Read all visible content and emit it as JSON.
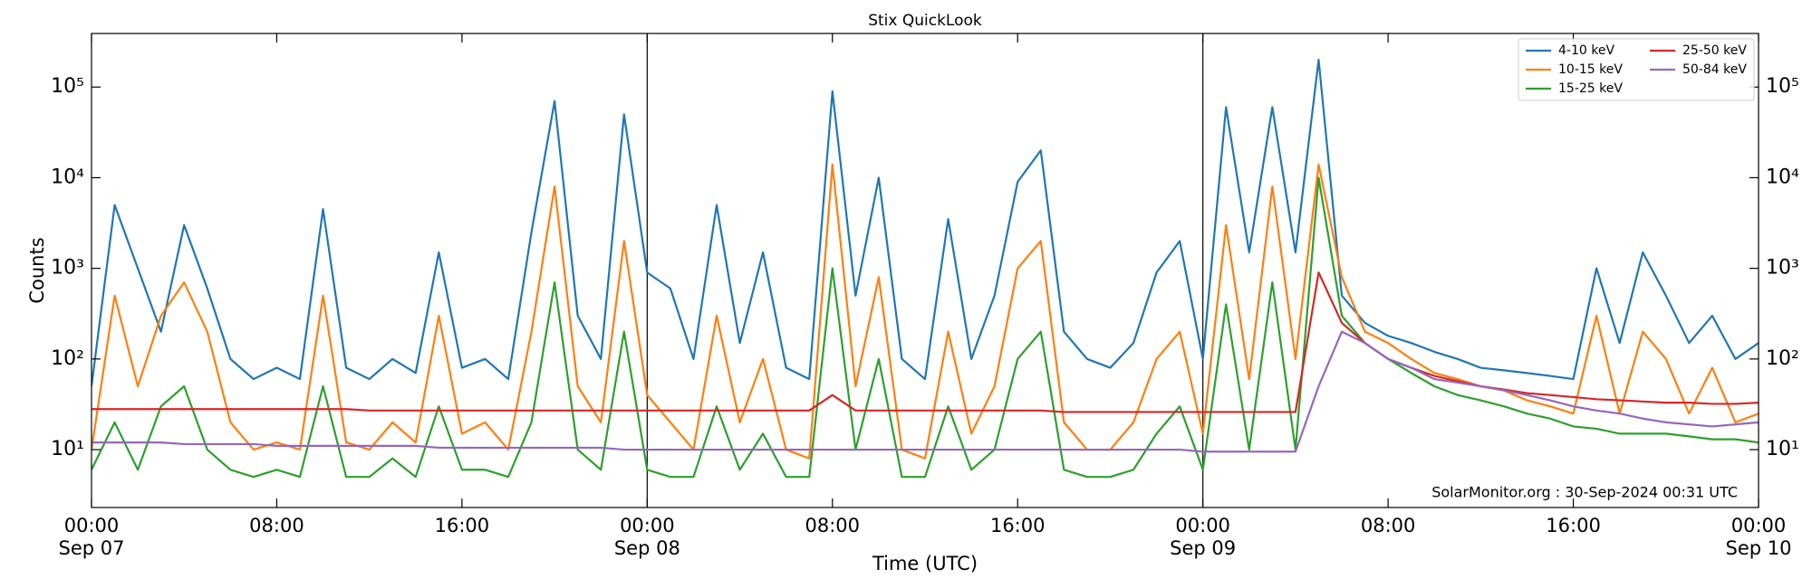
{
  "chart_data": {
    "type": "line",
    "title": "Stix QuickLook",
    "xlabel": "Time (UTC)",
    "ylabel": "Counts",
    "annotation": "SolarMonitor.org : 30-Sep-2024 00:31 UTC",
    "log_y": true,
    "legend": "upper right",
    "xlim": [
      0,
      72
    ],
    "xticks": [
      {
        "value": 0,
        "label": "00:00\nSep 07"
      },
      {
        "value": 8,
        "label": "08:00"
      },
      {
        "value": 16,
        "label": "16:00"
      },
      {
        "value": 24,
        "label": "00:00\nSep 08"
      },
      {
        "value": 32,
        "label": "08:00"
      },
      {
        "value": 40,
        "label": "16:00"
      },
      {
        "value": 48,
        "label": "00:00\nSep 09"
      },
      {
        "value": 56,
        "label": "08:00"
      },
      {
        "value": 64,
        "label": "16:00"
      },
      {
        "value": 72,
        "label": "00:00\nSep 10"
      }
    ],
    "vlines": [
      24,
      48
    ],
    "ylim": [
      2.3,
      390000
    ],
    "yticks": [
      {
        "value": 10,
        "label": "10¹"
      },
      {
        "value": 100,
        "label": "10²"
      },
      {
        "value": 1000,
        "label": "10³"
      },
      {
        "value": 10000,
        "label": "10⁴"
      },
      {
        "value": 100000,
        "label": "10⁵"
      }
    ],
    "x": [
      0,
      1,
      2,
      3,
      4,
      5,
      6,
      7,
      8,
      9,
      10,
      11,
      12,
      13,
      14,
      15,
      16,
      17,
      18,
      19,
      20,
      21,
      22,
      23,
      24,
      25,
      26,
      27,
      28,
      29,
      30,
      31,
      32,
      33,
      34,
      35,
      36,
      37,
      38,
      39,
      40,
      41,
      42,
      43,
      44,
      45,
      46,
      47,
      48,
      49,
      50,
      51,
      52,
      53,
      54,
      55,
      56,
      57,
      58,
      59,
      60,
      61,
      62,
      63,
      64,
      65,
      66,
      67,
      68,
      69,
      70,
      71,
      72
    ],
    "series": [
      {
        "name": "4-10 keV",
        "color": "#1f77b4",
        "values": [
          50,
          5000,
          1000,
          200,
          3000,
          600,
          100,
          60,
          80,
          60,
          4500,
          80,
          60,
          100,
          70,
          1500,
          80,
          100,
          60,
          2500,
          70000,
          300,
          100,
          50000,
          900,
          600,
          100,
          5000,
          150,
          1500,
          80,
          60,
          90000,
          500,
          10000,
          100,
          60,
          3500,
          100,
          500,
          9000,
          20000,
          200,
          100,
          80,
          150,
          900,
          2000,
          100,
          60000,
          1500,
          60000,
          1500,
          200000,
          500,
          250,
          180,
          150,
          120,
          100,
          80,
          75,
          70,
          65,
          60,
          1000,
          150,
          1500,
          500,
          150,
          300,
          100,
          150
        ]
      },
      {
        "name": "10-15 keV",
        "color": "#ff7f0e",
        "values": [
          10,
          500,
          50,
          300,
          700,
          200,
          20,
          10,
          12,
          10,
          500,
          12,
          10,
          20,
          12,
          300,
          15,
          20,
          10,
          200,
          8000,
          50,
          20,
          2000,
          40,
          20,
          10,
          300,
          20,
          100,
          10,
          8,
          14000,
          50,
          800,
          10,
          8,
          200,
          15,
          50,
          1000,
          2000,
          20,
          10,
          10,
          20,
          100,
          200,
          15,
          3000,
          60,
          8000,
          100,
          14000,
          800,
          200,
          150,
          100,
          70,
          60,
          50,
          45,
          35,
          30,
          25,
          300,
          25,
          200,
          100,
          25,
          80,
          20,
          25
        ]
      },
      {
        "name": "15-25 keV",
        "color": "#2ca02c",
        "values": [
          6,
          20,
          6,
          30,
          50,
          10,
          6,
          5,
          6,
          5,
          50,
          5,
          5,
          8,
          5,
          30,
          6,
          6,
          5,
          20,
          700,
          10,
          6,
          200,
          6,
          5,
          5,
          30,
          6,
          15,
          5,
          5,
          1000,
          10,
          100,
          5,
          5,
          30,
          6,
          10,
          100,
          200,
          6,
          5,
          5,
          6,
          15,
          30,
          6,
          400,
          10,
          700,
          10,
          10000,
          300,
          150,
          100,
          70,
          50,
          40,
          35,
          30,
          25,
          22,
          18,
          17,
          15,
          15,
          15,
          14,
          13,
          13,
          12
        ]
      },
      {
        "name": "25-50 keV",
        "color": "#d62728",
        "values": [
          28,
          28,
          28,
          28,
          28,
          28,
          28,
          28,
          28,
          28,
          28,
          28,
          27,
          27,
          27,
          27,
          27,
          27,
          27,
          27,
          27,
          27,
          27,
          27,
          27,
          27,
          27,
          27,
          27,
          27,
          27,
          27,
          40,
          27,
          27,
          27,
          27,
          27,
          27,
          27,
          27,
          27,
          26,
          26,
          26,
          26,
          26,
          26,
          26,
          26,
          26,
          26,
          26,
          900,
          250,
          150,
          100,
          80,
          65,
          57,
          50,
          46,
          42,
          40,
          38,
          36,
          35,
          34,
          33,
          33,
          32,
          32,
          33
        ]
      },
      {
        "name": "50-84 keV",
        "color": "#9467bd",
        "values": [
          12,
          12,
          12,
          12,
          11.5,
          11.5,
          11.5,
          11.5,
          11,
          11,
          11,
          11,
          11,
          11,
          11,
          10.5,
          10.5,
          10.5,
          10.5,
          10.5,
          10.5,
          10.5,
          10.5,
          10,
          10,
          10,
          10,
          10,
          10,
          10,
          10,
          10,
          10,
          10,
          10,
          10,
          10,
          10,
          10,
          10,
          10,
          10,
          10,
          10,
          10,
          10,
          10,
          10,
          9.5,
          9.5,
          9.5,
          9.5,
          9.5,
          50,
          200,
          150,
          100,
          80,
          60,
          55,
          50,
          45,
          40,
          35,
          30,
          27,
          25,
          22,
          20,
          19,
          18,
          19,
          20
        ]
      }
    ]
  }
}
